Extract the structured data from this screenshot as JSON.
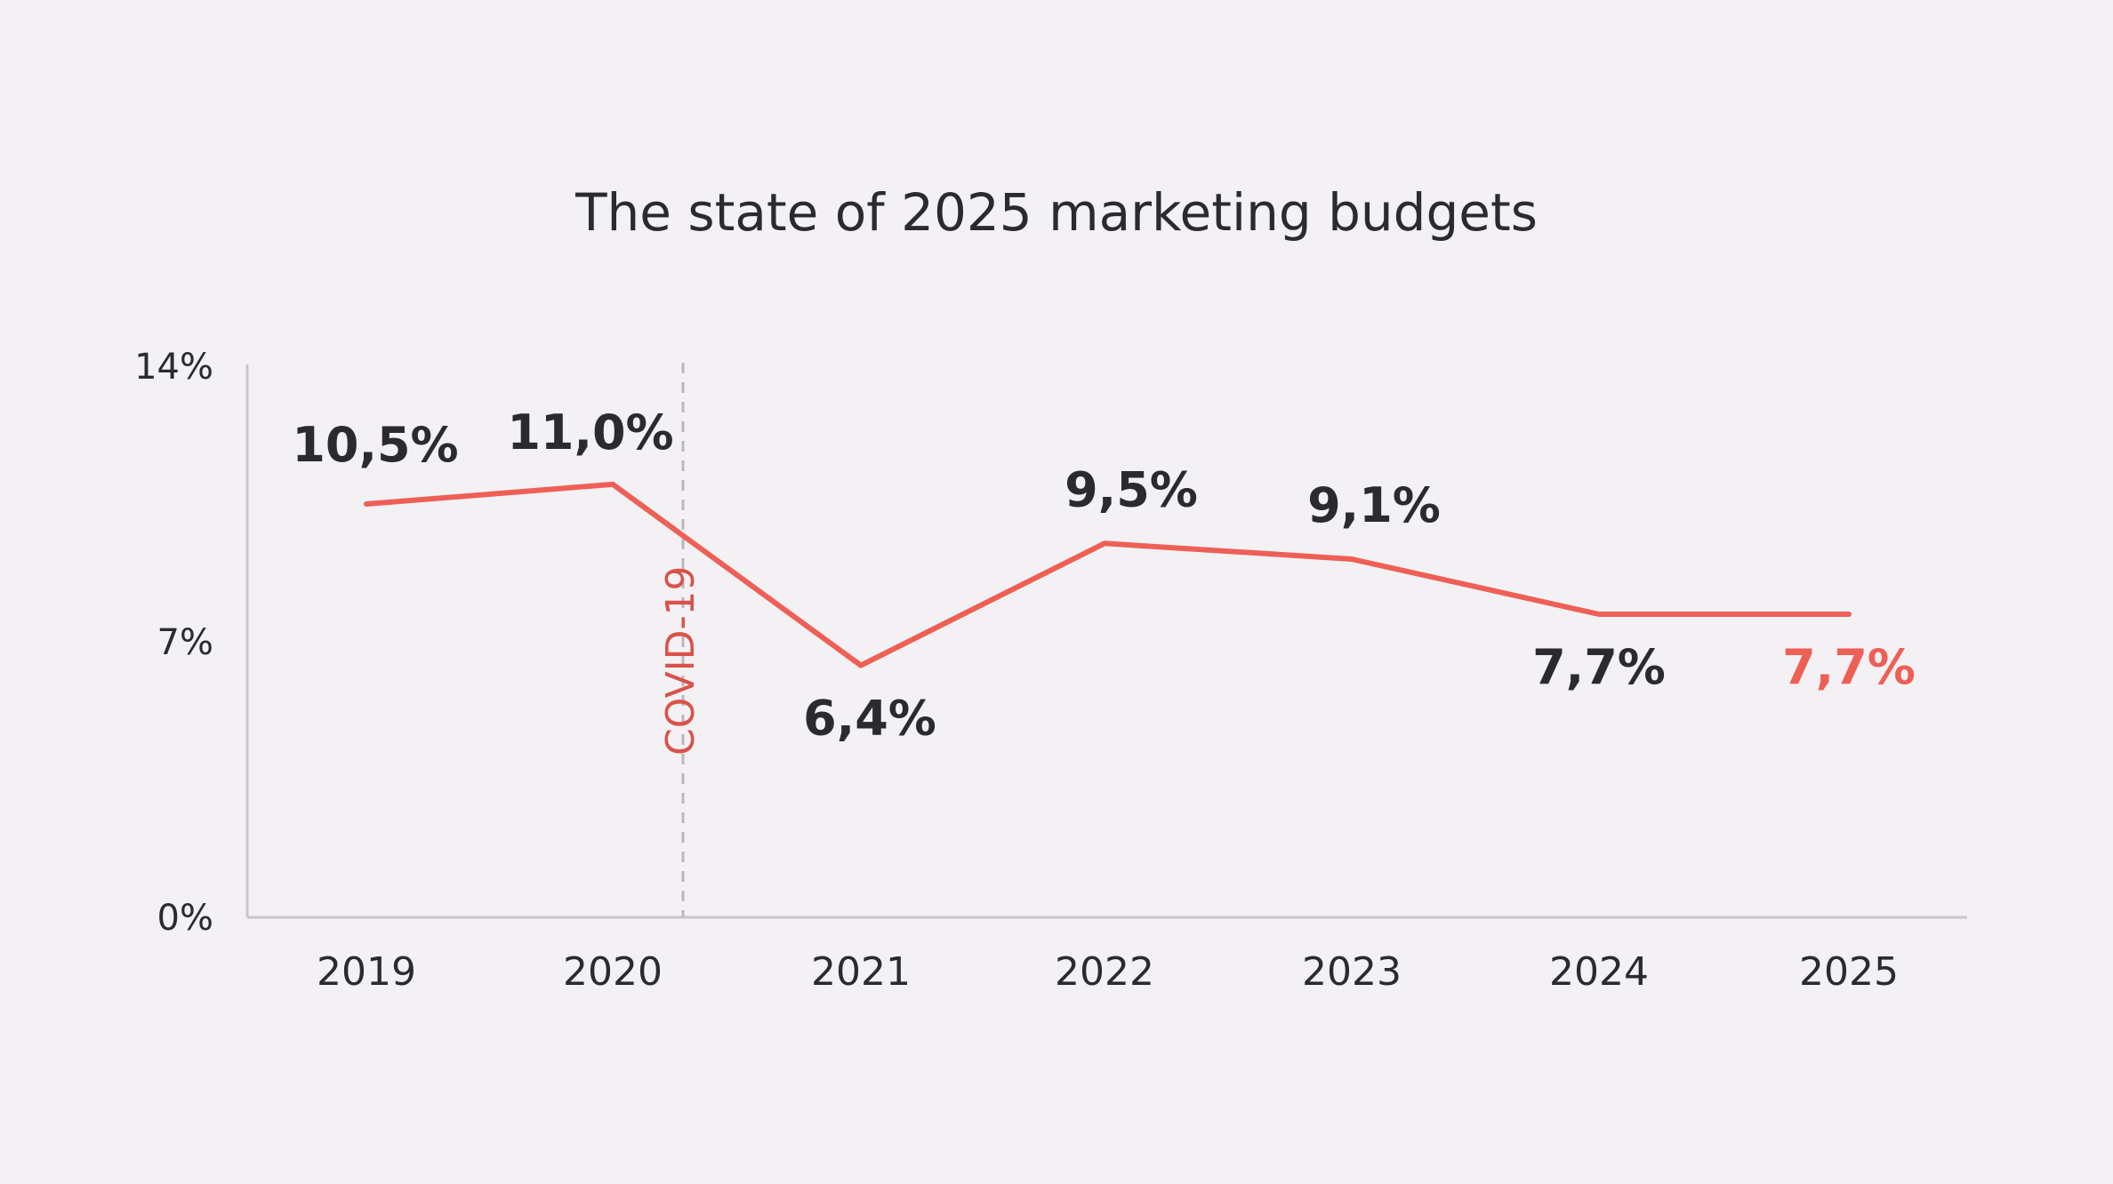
{
  "chart_data": {
    "type": "line",
    "title": "The state of 2025 marketing budgets",
    "categories": [
      "2019",
      "2020",
      "2021",
      "2022",
      "2023",
      "2024",
      "2025"
    ],
    "values": [
      10.5,
      11.0,
      6.4,
      9.5,
      9.1,
      7.7,
      7.7
    ],
    "data_labels": [
      "10,5%",
      "11,0%",
      "6,4%",
      "9,5%",
      "9,1%",
      "7,7%",
      "7,7%"
    ],
    "ylim": [
      0,
      14
    ],
    "yticks": [
      0,
      7,
      14
    ],
    "ytick_labels": [
      "0%",
      "7%",
      "14%"
    ],
    "xlabel": "",
    "ylabel": "",
    "grid": false,
    "annotation": {
      "label": "COVID-19",
      "between": [
        "2020",
        "2021"
      ],
      "style": "dashed vertical line"
    },
    "colors": {
      "line": "#ee5f55",
      "highlight_label": "#ee5f55",
      "annotation": "#d9534a",
      "text": "#2b2a2e",
      "axis": "#c8c6ca",
      "background": "#f3f1f4"
    }
  }
}
